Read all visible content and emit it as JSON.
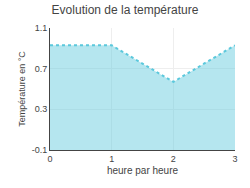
{
  "chart_data": {
    "type": "area",
    "title": "Evolution de la température",
    "xlabel": "heure par heure",
    "ylabel": "Température en °C",
    "x": [
      0,
      1,
      2,
      3
    ],
    "values": [
      0.93,
      0.93,
      0.57,
      0.93
    ],
    "color": "#5bc8dc",
    "line_style": "dotted",
    "xlim": [
      0,
      3
    ],
    "ylim": [
      -0.1,
      1.1
    ],
    "xticks": [
      0,
      1,
      2,
      3
    ],
    "yticks": [
      -0.1,
      0.3,
      0.7,
      1.1
    ],
    "grid": true
  }
}
